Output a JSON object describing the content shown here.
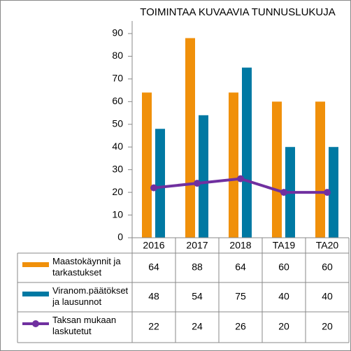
{
  "chart_data": {
    "type": "bar_line_table",
    "title": "TOIMINTAA KUVAAVIA TUNNUSLUKUJA",
    "categories": [
      "2016",
      "2017",
      "2018",
      "TA19",
      "TA20"
    ],
    "series": [
      {
        "name": "Maastokäynnit ja tarkastukset",
        "type": "bar",
        "color": "#f0900a",
        "values": [
          64,
          88,
          64,
          60,
          60
        ]
      },
      {
        "name": "Viranom.päätökset ja lausunnot",
        "type": "bar",
        "color": "#0079a3",
        "values": [
          48,
          54,
          75,
          40,
          40
        ]
      },
      {
        "name": "Taksan mukaan laskutetut",
        "type": "line",
        "color": "#7030a0",
        "values": [
          22,
          24,
          26,
          20,
          20
        ]
      }
    ],
    "ylim": [
      0,
      90
    ],
    "yticks": [
      0,
      10,
      20,
      30,
      40,
      50,
      60,
      70,
      80,
      90
    ],
    "grid": false
  }
}
